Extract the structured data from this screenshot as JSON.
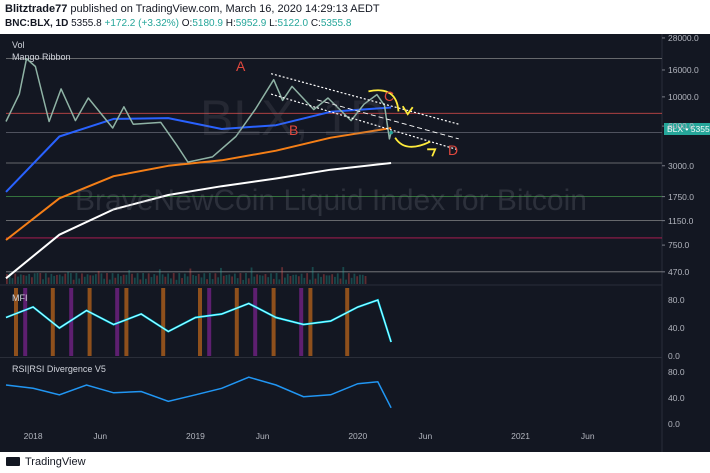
{
  "header": {
    "author": "Blitztrade77",
    "published": "published on TradingView.com, March 16, 2020 14:29:13 AEDT",
    "symbol": "BNC:BLX, 1D",
    "last": "5355.8",
    "change": "+172.2 (+3.32%)",
    "o_label": "O:",
    "o_value": "5180.9",
    "h_label": "H:",
    "h_value": "5952.9",
    "l_label": "L:",
    "l_value": "5122.0",
    "c_label": "C:",
    "c_value": "5355.8"
  },
  "main_pane": {
    "indicator_vol": "Vol",
    "indicator_ribbon": "Mango Ribbon",
    "watermark_symbol": "BLX, 1D",
    "watermark_name": "BraveNewCoin Liquid Index for Bitcoin",
    "price_tag": "BLX • 5355.8",
    "annotations": [
      "A",
      "B",
      "C",
      "D"
    ]
  },
  "mfi_pane": {
    "title": "MFI"
  },
  "rsi_pane": {
    "title": "RSI|RSI Divergence V5"
  },
  "footer": {
    "brand": "TradingView"
  },
  "colors": {
    "background": "#131722",
    "up": "#26a69a",
    "down": "#ef5350",
    "ribbon_blue": "#2962ff",
    "ribbon_orange": "#f57f17",
    "ribbon_white": "#ffffff",
    "annotation_red": "#e0483e",
    "annotation_yellow": "#ffeb3b",
    "mfi_cyan": "#00e5ff",
    "rsi_blue": "#2196f3"
  },
  "chart_data": [
    {
      "type": "line",
      "pane": "price",
      "scale": "log",
      "y_ticks": [
        28000,
        16000,
        10000,
        6000,
        3000,
        1750,
        1150,
        750,
        470
      ],
      "y_tick_labels": [
        "28000.0",
        "16000.0",
        "10000.0",
        "6000.0",
        "3000.0",
        "1750.0",
        "1150.0",
        "750.0",
        "470.0"
      ],
      "ylim": [
        380,
        30000
      ],
      "x_tick_labels": [
        "2018",
        "Jun",
        "2019",
        "Jun",
        "2020",
        "Jun",
        "2021",
        "Jun"
      ],
      "x_tick_dates": [
        "2018-01-01",
        "2018-06-01",
        "2019-01-01",
        "2019-06-01",
        "2020-01-01",
        "2020-06-01",
        "2021-01-01",
        "2021-06-01"
      ],
      "series": [
        {
          "x": [
            "2017-11-01",
            "2017-12-01",
            "2017-12-17",
            "2018-01-06",
            "2018-02-06",
            "2018-03-05",
            "2018-04-06",
            "2018-05-05",
            "2018-06-29",
            "2018-07-24",
            "2018-08-14",
            "2018-10-15",
            "2018-11-20",
            "2018-12-15",
            "2019-02-08",
            "2019-04-02",
            "2019-05-15",
            "2019-06-26",
            "2019-07-16",
            "2019-08-06",
            "2019-09-24",
            "2019-10-26",
            "2019-12-17",
            "2020-01-15",
            "2020-02-13",
            "2020-03-01",
            "2020-03-12",
            "2020-03-16"
          ],
          "values": [
            6500,
            10500,
            19500,
            17000,
            6500,
            11500,
            6600,
            9800,
            5800,
            8400,
            6200,
            6400,
            4300,
            3200,
            3500,
            5000,
            8000,
            13500,
            9400,
            12000,
            8000,
            9800,
            6600,
            8800,
            10400,
            8600,
            4800,
            5356
          ]
        },
        {
          "x": [
            "2017-11-01",
            "2018-03-01",
            "2018-07-01",
            "2018-11-01",
            "2019-03-01",
            "2019-07-01",
            "2019-11-01",
            "2020-03-16"
          ],
          "values": [
            1900,
            5000,
            6800,
            6900,
            5700,
            6100,
            7700,
            8300
          ]
        },
        {
          "x": [
            "2017-11-01",
            "2018-03-01",
            "2018-07-01",
            "2018-11-01",
            "2019-03-01",
            "2019-07-01",
            "2019-11-01",
            "2020-03-16"
          ],
          "values": [
            820,
            1700,
            2500,
            3000,
            3300,
            3900,
            4900,
            5800
          ]
        },
        {
          "x": [
            "2017-11-01",
            "2018-03-01",
            "2018-07-01",
            "2018-11-01",
            "2019-03-01",
            "2019-07-01",
            "2019-11-01",
            "2020-03-16"
          ],
          "values": [
            420,
            900,
            1400,
            1800,
            2100,
            2400,
            2800,
            3150
          ]
        }
      ]
    },
    {
      "type": "bar",
      "pane": "mfi",
      "y_ticks": [
        0,
        40,
        80
      ],
      "y_tick_labels": [
        "0.0",
        "40.0",
        "80.0"
      ],
      "ylim": [
        0,
        100
      ],
      "series": [
        {
          "x": [
            "2017-11-01",
            "2018-01-01",
            "2018-03-01",
            "2018-05-01",
            "2018-07-01",
            "2018-09-01",
            "2018-11-01",
            "2019-01-01",
            "2019-03-01",
            "2019-05-01",
            "2019-07-01",
            "2019-09-01",
            "2019-11-01",
            "2020-01-01",
            "2020-02-15",
            "2020-03-16"
          ],
          "values": [
            55,
            70,
            40,
            65,
            45,
            60,
            35,
            55,
            60,
            75,
            55,
            45,
            50,
            70,
            80,
            20
          ]
        }
      ]
    },
    {
      "type": "line",
      "pane": "rsi",
      "y_ticks": [
        0,
        40,
        80
      ],
      "y_tick_labels": [
        "0.0",
        "40.0",
        "80.0"
      ],
      "ylim": [
        0,
        100
      ],
      "series": [
        {
          "x": [
            "2017-11-01",
            "2018-01-01",
            "2018-03-01",
            "2018-05-01",
            "2018-07-01",
            "2018-09-01",
            "2018-11-01",
            "2019-01-01",
            "2019-03-01",
            "2019-05-01",
            "2019-07-01",
            "2019-09-01",
            "2019-11-01",
            "2020-01-01",
            "2020-02-15",
            "2020-03-16"
          ],
          "values": [
            60,
            55,
            45,
            60,
            48,
            50,
            35,
            45,
            55,
            72,
            60,
            42,
            45,
            62,
            65,
            25
          ]
        }
      ]
    }
  ]
}
